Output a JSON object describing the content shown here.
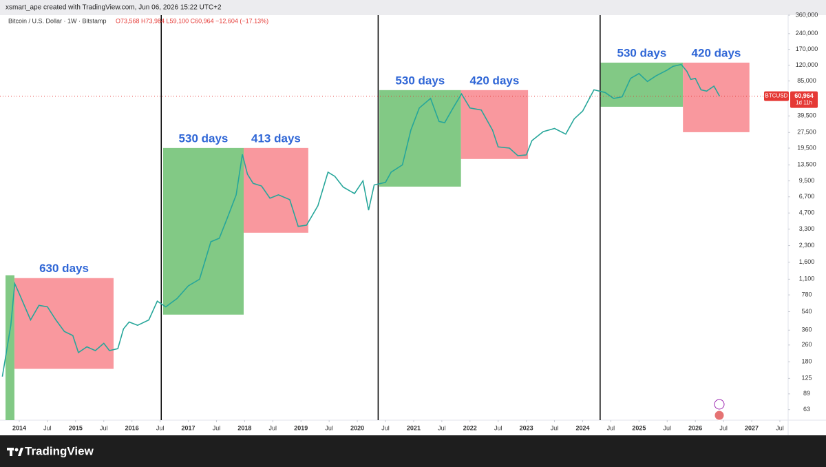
{
  "header": {
    "attribution": "xsmart_ape created with TradingView.com, Jun 06, 2026 15:22 UTC+2"
  },
  "chart_data": {
    "type": "line",
    "symbol": "Bitcoin / U.S. Dollar · 1W · Bitstamp",
    "ohlc": "O73,568 H73,984 L59,100 C60,964 −12,604 (−17.13%)",
    "log_scale": true,
    "xlim": [
      2013.658,
      2027.647
    ],
    "ylim": [
      50,
      360000
    ],
    "xticks": [
      2014,
      {
        "value": 2014.5,
        "label": "Jul"
      },
      2015,
      {
        "value": 2015.5,
        "label": "Jul"
      },
      2016,
      {
        "value": 2016.5,
        "label": "Jul"
      },
      2017,
      {
        "value": 2017.5,
        "label": "Jul"
      },
      2018,
      {
        "value": 2018.5,
        "label": "Jul"
      },
      2019,
      {
        "value": 2019.5,
        "label": "Jul"
      },
      2020,
      {
        "value": 2020.5,
        "label": "Jul"
      },
      2021,
      {
        "value": 2021.5,
        "label": "Jul"
      },
      2022,
      {
        "value": 2022.5,
        "label": "Jul"
      },
      2023,
      {
        "value": 2023.5,
        "label": "Jul"
      },
      2024,
      {
        "value": 2024.5,
        "label": "Jul"
      },
      2025,
      {
        "value": 2025.5,
        "label": "Jul"
      },
      2026,
      {
        "value": 2026.5,
        "label": "Jul"
      },
      2027,
      {
        "value": 2027.5,
        "label": "Jul"
      }
    ],
    "yticks": [
      63,
      89,
      125,
      180,
      260,
      360,
      540,
      780,
      {
        "value": 1100,
        "label": "1,100"
      },
      {
        "value": 1600,
        "label": "1,600"
      },
      {
        "value": 2300,
        "label": "2,300"
      },
      {
        "value": 3300,
        "label": "3,300"
      },
      {
        "value": 4700,
        "label": "4,700"
      },
      {
        "value": 6700,
        "label": "6,700"
      },
      {
        "value": 9500,
        "label": "9,500"
      },
      {
        "value": 13500,
        "label": "13,500"
      },
      {
        "value": 19500,
        "label": "19,500"
      },
      {
        "value": 27500,
        "label": "27,500"
      },
      {
        "value": 39500,
        "label": "39,500"
      },
      {
        "value": 85000,
        "label": "85,000"
      },
      {
        "value": 120000,
        "label": "120,000"
      },
      {
        "value": 170000,
        "label": "170,000"
      },
      {
        "value": 240000,
        "label": "240,000"
      },
      {
        "value": 360000,
        "label": "360,000"
      }
    ],
    "series": [
      {
        "name": "BTCUSD",
        "color": "#26a69a",
        "x": [
          2013.7,
          2013.85,
          2013.92,
          2014.0,
          2014.1,
          2014.2,
          2014.35,
          2014.5,
          2014.65,
          2014.8,
          2014.95,
          2015.05,
          2015.2,
          2015.35,
          2015.5,
          2015.6,
          2015.75,
          2015.85,
          2015.95,
          2016.1,
          2016.3,
          2016.45,
          2016.6,
          2016.8,
          2017.0,
          2017.2,
          2017.4,
          2017.55,
          2017.7,
          2017.85,
          2017.96,
          2018.05,
          2018.15,
          2018.3,
          2018.45,
          2018.6,
          2018.8,
          2018.95,
          2019.1,
          2019.3,
          2019.48,
          2019.6,
          2019.75,
          2019.95,
          2020.1,
          2020.2,
          2020.3,
          2020.5,
          2020.6,
          2020.8,
          2020.95,
          2021.1,
          2021.3,
          2021.45,
          2021.55,
          2021.7,
          2021.85,
          2022.0,
          2022.2,
          2022.4,
          2022.5,
          2022.7,
          2022.85,
          2023.0,
          2023.1,
          2023.3,
          2023.5,
          2023.7,
          2023.85,
          2024.0,
          2024.2,
          2024.4,
          2024.55,
          2024.7,
          2024.85,
          2025.0,
          2025.15,
          2025.3,
          2025.5,
          2025.6,
          2025.75,
          2025.85,
          2025.92,
          2026.0,
          2026.1,
          2026.2,
          2026.33,
          2026.43
        ],
        "values": [
          130,
          400,
          1000,
          800,
          600,
          450,
          620,
          600,
          450,
          350,
          320,
          220,
          250,
          230,
          270,
          230,
          240,
          370,
          430,
          400,
          450,
          680,
          600,
          720,
          950,
          1100,
          2500,
          2700,
          4300,
          7000,
          17000,
          11000,
          9000,
          8500,
          6500,
          7000,
          6300,
          3500,
          3600,
          5500,
          11500,
          10500,
          8300,
          7200,
          9500,
          5000,
          8700,
          9200,
          11500,
          13500,
          29000,
          47000,
          58000,
          35000,
          34000,
          47000,
          64000,
          47000,
          45000,
          29000,
          20000,
          19500,
          16500,
          16800,
          23000,
          28000,
          30000,
          26500,
          37000,
          44000,
          70000,
          66000,
          58000,
          60000,
          90000,
          100000,
          84000,
          95000,
          108000,
          117000,
          122000,
          105000,
          88000,
          90000,
          70000,
          68000,
          76000,
          60964
        ]
      }
    ],
    "last_price": {
      "value": 60964,
      "label": "60,964"
    },
    "badge_symbol": "BTCUSD",
    "badge_countdown": "1d 11h",
    "vlines": [
      2016.52,
      2020.37,
      2024.31
    ],
    "boxes": [
      {
        "color": "#6cc070",
        "x": [
          2013.756,
          2013.914
        ],
        "y": [
          50,
          1200
        ]
      },
      {
        "label": "630 days",
        "color": "#f8868d",
        "x": [
          2013.915,
          2015.674
        ],
        "y": [
          154,
          1127
        ]
      },
      {
        "label": "530 days",
        "color": "#6cc070",
        "x": [
          2016.553,
          2017.983
        ],
        "y": [
          506,
          19550
        ]
      },
      {
        "label": "413 days",
        "color": "#f8868d",
        "x": [
          2017.983,
          2019.13
        ],
        "y": [
          3050,
          19550
        ]
      },
      {
        "label": "530 days",
        "color": "#6cc070",
        "x": [
          2020.39,
          2021.84
        ],
        "y": [
          8380,
          69550
        ]
      },
      {
        "label": "420 days",
        "color": "#f8868d",
        "x": [
          2021.84,
          2023.03
        ],
        "y": [
          15360,
          69550
        ]
      },
      {
        "label": "530 days",
        "color": "#6cc070",
        "x": [
          2024.32,
          2025.78
        ],
        "y": [
          48300,
          127100
        ]
      },
      {
        "label": "420 days",
        "color": "#f8868d",
        "x": [
          2025.78,
          2026.96
        ],
        "y": [
          27650,
          127100
        ]
      }
    ],
    "box_label_color": "#2f66d6"
  },
  "footer": {
    "brand": "TradingView"
  }
}
